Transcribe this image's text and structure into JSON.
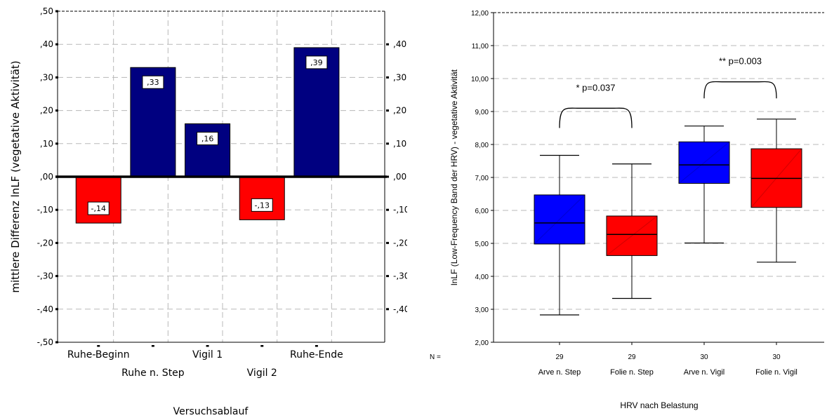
{
  "chart_data": [
    {
      "type": "bar",
      "xlabel": "Versuchsablauf",
      "ylabel": "mittlere Differenz lnLF (vegetative Aktivität)",
      "ylim": [
        -0.5,
        0.5
      ],
      "yticks_left": [
        ",50",
        ",40",
        ",30",
        ",20",
        ",10",
        ",00",
        "-,10",
        "-,20",
        "-,30",
        "-,40",
        "-,50"
      ],
      "yticks_right": [
        ",40",
        ",30",
        ",20",
        ",10",
        ",00",
        "-,10",
        "-,20",
        "-,30",
        "-,40"
      ],
      "categories": [
        "Ruhe-Beginn",
        "Ruhe n. Step",
        "Vigil 1",
        "Vigil 2",
        "Ruhe-Ende"
      ],
      "values": [
        -0.14,
        0.33,
        0.16,
        -0.13,
        0.39
      ],
      "value_labels": [
        "-,14",
        ",33",
        ",16",
        "-,13",
        ",39"
      ],
      "colors": [
        "#ff0000",
        "#000080",
        "#000080",
        "#ff0000",
        "#000080"
      ],
      "grid": true
    },
    {
      "type": "box",
      "xlabel": "HRV nach Belastung",
      "ylabel": "lnLF (Low-Frequency Band der HRV) - vegetative Aktivität",
      "ylim": [
        2.0,
        12.0
      ],
      "yticks": [
        "2,00",
        "3,00",
        "4,00",
        "5,00",
        "6,00",
        "7,00",
        "8,00",
        "9,00",
        "10,00",
        "11,00",
        "12,00"
      ],
      "n_label": "N =",
      "categories": [
        "Arve n. Step",
        "Folie n. Step",
        "Arve n. Vigil",
        "Folie n. Vigil"
      ],
      "n": [
        "29",
        "29",
        "30",
        "30"
      ],
      "boxes": [
        {
          "min": 2.83,
          "q1": 4.98,
          "median": 5.62,
          "q3": 6.47,
          "max": 7.67,
          "color": "#0000ff"
        },
        {
          "min": 3.33,
          "q1": 4.63,
          "median": 5.27,
          "q3": 5.83,
          "max": 7.41,
          "color": "#ff0000"
        },
        {
          "min": 5.01,
          "q1": 6.82,
          "median": 7.38,
          "q3": 8.08,
          "max": 8.56,
          "color": "#0000ff"
        },
        {
          "min": 4.43,
          "q1": 6.09,
          "median": 6.97,
          "q3": 7.87,
          "max": 8.77,
          "color": "#ff0000"
        }
      ],
      "annotations": [
        "* p=0.037",
        "** p=0.003"
      ],
      "grid": true
    }
  ]
}
